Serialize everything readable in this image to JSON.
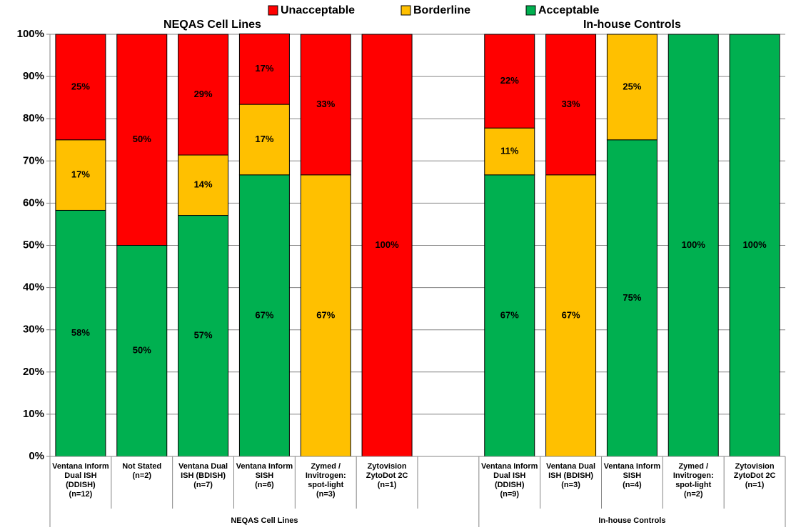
{
  "chart_data": {
    "type": "stacked_bar",
    "groups": [
      "NEQAS Cell Lines",
      "In-house Controls"
    ],
    "categories": [
      "Ventana Inform\nDual ISH\n(DDISH)\n(n=12)",
      "Not Stated\n(n=2)",
      "Ventana Dual\nISH (BDISH)\n(n=7)",
      "Ventana Inform\nSISH\n(n=6)",
      "Zymed /\nInvitrogen:\nspot-light\n(n=3)",
      "Zytovision\nZytoDot 2C\n(n=1)",
      null,
      "Ventana Inform\nDual ISH\n(DDISH)\n(n=9)",
      "Ventana Dual\nISH (BDISH)\n(n=3)",
      "Ventana Inform\nSISH\n(n=4)",
      "Zymed /\nInvitrogen:\nspot-light\n(n=2)",
      "Zytovision\nZytoDot 2C\n(n=1)"
    ],
    "series": [
      {
        "name": "Unacceptable",
        "color": "#ff0000",
        "values": [
          25,
          50,
          28.6,
          16.7,
          33.3,
          100,
          null,
          22.2,
          33.3,
          0,
          0,
          0
        ],
        "value_labels": [
          "25%",
          "50%",
          "29%",
          "17%",
          "33%",
          "100%",
          null,
          "22%",
          "33%",
          null,
          null,
          null
        ]
      },
      {
        "name": "Borderline",
        "color": "#ffc000",
        "values": [
          16.7,
          0,
          14.3,
          16.7,
          66.7,
          0,
          null,
          11.1,
          66.7,
          25,
          0,
          0
        ],
        "value_labels": [
          "17%",
          null,
          "14%",
          "17%",
          "67%",
          null,
          null,
          "11%",
          "67%",
          "25%",
          null,
          null
        ]
      },
      {
        "name": "Acceptable",
        "color": "#00b050",
        "values": [
          58.3,
          50,
          57.1,
          66.7,
          0,
          0,
          null,
          66.7,
          0,
          75,
          100,
          100
        ],
        "value_labels": [
          "58%",
          "50%",
          "57%",
          "67%",
          null,
          null,
          null,
          "67%",
          null,
          "75%",
          "100%",
          "100%"
        ]
      }
    ],
    "ylim": [
      0,
      100
    ],
    "yticks": [
      {
        "value": 0,
        "label": "0%"
      },
      {
        "value": 10,
        "label": "10%"
      },
      {
        "value": 20,
        "label": "20%"
      },
      {
        "value": 30,
        "label": "30%"
      },
      {
        "value": 40,
        "label": "40%"
      },
      {
        "value": 50,
        "label": "50%"
      },
      {
        "value": 60,
        "label": "60%"
      },
      {
        "value": 70,
        "label": "70%"
      },
      {
        "value": 80,
        "label": "80%"
      },
      {
        "value": 90,
        "label": "90%"
      },
      {
        "value": 100,
        "label": "100%"
      }
    ],
    "grid": true,
    "legend": "top"
  }
}
